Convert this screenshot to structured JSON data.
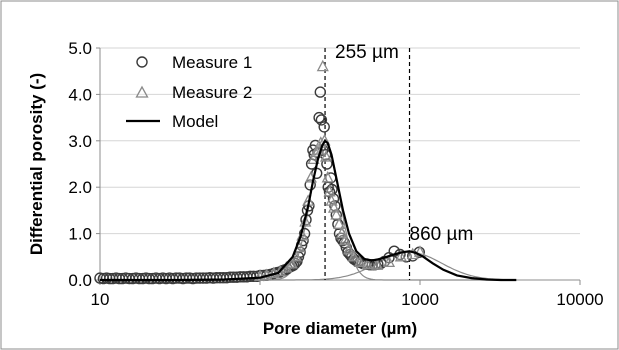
{
  "chart_data": {
    "type": "scatter",
    "title": "",
    "xlabel": "Pore diameter (µm)",
    "ylabel": "Differential porosity (-)",
    "xscale": "log",
    "xlim": [
      10,
      10000
    ],
    "ylim": [
      0,
      5
    ],
    "x_ticks": [
      "10",
      "100",
      "1000",
      "10000"
    ],
    "x_tick_values": [
      10,
      100,
      1000,
      10000
    ],
    "y_ticks": [
      "0.0",
      "1.0",
      "2.0",
      "3.0",
      "4.0",
      "5.0"
    ],
    "y_tick_values": [
      0,
      1,
      2,
      3,
      4,
      5
    ],
    "grid": "horizontal",
    "legend": {
      "position": "top-left",
      "entries": [
        "Measure 1",
        "Measure 2",
        "Model"
      ]
    },
    "annotations": [
      {
        "label": "255 µm",
        "x": 255
      },
      {
        "label": "860 µm",
        "x": 860
      }
    ],
    "series": [
      {
        "name": "Measure 1",
        "marker": "circle",
        "x": [
          10,
          10.5,
          11,
          11.5,
          12,
          12.6,
          13.2,
          13.8,
          14.5,
          15.2,
          16,
          16.8,
          17.6,
          18.5,
          19.4,
          20.3,
          21.3,
          22.4,
          23.5,
          24.7,
          25.9,
          27.2,
          28.5,
          29.9,
          31.4,
          33,
          34.6,
          36.3,
          38.1,
          40,
          42,
          44.1,
          46.3,
          48.6,
          51,
          53.5,
          56.2,
          59,
          61.9,
          65,
          68.2,
          71.6,
          75.2,
          78.9,
          82.8,
          86.9,
          91.2,
          95.7,
          100.5,
          105.5,
          110.7,
          116.2,
          122,
          128,
          133,
          138,
          143,
          148,
          153,
          158,
          162,
          166,
          170,
          174,
          178,
          182,
          186,
          190,
          194,
          198,
          202,
          206,
          210,
          214,
          218,
          222,
          226,
          230,
          234,
          238,
          242,
          247,
          252,
          257,
          262,
          267,
          272,
          277,
          282,
          288,
          294,
          300,
          307,
          314,
          321,
          329,
          337,
          346,
          355,
          365,
          375,
          386,
          398,
          410,
          423,
          437,
          452,
          468,
          485,
          503,
          523,
          545,
          570,
          600,
          640,
          690,
          750,
          820,
          900,
          990
        ],
        "values": [
          0.04,
          0.03,
          0.04,
          0.03,
          0.03,
          0.04,
          0.03,
          0.03,
          0.04,
          0.03,
          0.03,
          0.04,
          0.03,
          0.03,
          0.04,
          0.03,
          0.03,
          0.04,
          0.03,
          0.04,
          0.03,
          0.04,
          0.03,
          0.04,
          0.04,
          0.03,
          0.04,
          0.04,
          0.03,
          0.04,
          0.04,
          0.04,
          0.04,
          0.05,
          0.04,
          0.05,
          0.05,
          0.05,
          0.05,
          0.06,
          0.06,
          0.06,
          0.07,
          0.07,
          0.07,
          0.08,
          0.08,
          0.08,
          0.1,
          0.1,
          0.11,
          0.12,
          0.14,
          0.16,
          0.17,
          0.2,
          0.22,
          0.24,
          0.28,
          0.3,
          0.32,
          0.36,
          0.4,
          0.5,
          0.6,
          0.75,
          0.85,
          1.0,
          1.3,
          1.5,
          1.6,
          2.05,
          2.5,
          2.8,
          2.7,
          2.9,
          2.3,
          2.75,
          3.5,
          4.05,
          3.45,
          2.8,
          3.3,
          2.7,
          2.5,
          2.0,
          1.9,
          2.2,
          1.95,
          1.75,
          1.6,
          1.4,
          1.2,
          1.0,
          0.9,
          0.85,
          0.8,
          0.7,
          0.6,
          0.55,
          0.5,
          0.45,
          0.42,
          0.4,
          0.38,
          0.36,
          0.35,
          0.34,
          0.33,
          0.33,
          0.33,
          0.34,
          0.36,
          0.4,
          0.48,
          0.62,
          0.55,
          0.5,
          0.52,
          0.6
        ]
      },
      {
        "name": "Measure 2",
        "marker": "triangle",
        "x": [
          100,
          110,
          122,
          134,
          146,
          158,
          168,
          176,
          184,
          192,
          200,
          208,
          216,
          224,
          232,
          240,
          247,
          253,
          259,
          265,
          272,
          280,
          290,
          300,
          312,
          325,
          340,
          360,
          385,
          420,
          470,
          540,
          640,
          760,
          900,
          1000
        ],
        "values": [
          0.08,
          0.1,
          0.14,
          0.18,
          0.26,
          0.35,
          0.5,
          0.7,
          0.95,
          1.25,
          1.7,
          2.2,
          2.6,
          2.75,
          2.8,
          2.95,
          4.6,
          3.0,
          2.65,
          2.2,
          1.9,
          1.7,
          1.55,
          1.4,
          1.2,
          1.0,
          0.85,
          0.65,
          0.5,
          0.38,
          0.33,
          0.32,
          0.38,
          0.5,
          0.55,
          0.6
        ]
      },
      {
        "name": "Model",
        "type": "line",
        "x": [
          10,
          30,
          60,
          100,
          130,
          160,
          180,
          200,
          215,
          230,
          245,
          255,
          265,
          280,
          300,
          330,
          360,
          400,
          450,
          500,
          560,
          620,
          700,
          780,
          860,
          950,
          1050,
          1200,
          1400,
          1700,
          2100,
          2600,
          3200,
          4000
        ],
        "values": [
          0.0,
          0.0,
          0.01,
          0.05,
          0.15,
          0.5,
          0.95,
          1.6,
          2.15,
          2.6,
          2.9,
          3.0,
          2.95,
          2.7,
          2.2,
          1.5,
          1.0,
          0.62,
          0.45,
          0.42,
          0.45,
          0.5,
          0.56,
          0.6,
          0.62,
          0.58,
          0.5,
          0.36,
          0.22,
          0.1,
          0.04,
          0.01,
          0.0,
          0.0
        ]
      }
    ]
  }
}
